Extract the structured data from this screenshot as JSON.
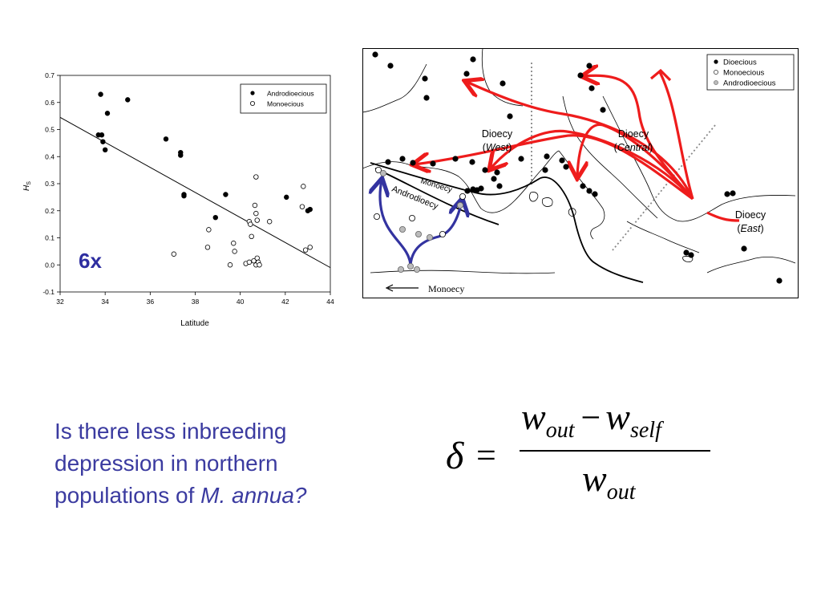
{
  "chart_data": {
    "type": "scatter",
    "xlabel": "Latitude",
    "ylabel_main": "H",
    "ylabel_sub": "S",
    "xlim": [
      32,
      44
    ],
    "ylim": [
      -0.1,
      0.7
    ],
    "x_ticks": [
      "32",
      "34",
      "36",
      "38",
      "40",
      "42",
      "44"
    ],
    "y_ticks": [
      "-0.1",
      "0.0",
      "0.1",
      "0.2",
      "0.3",
      "0.4",
      "0.5",
      "0.6",
      "0.7"
    ],
    "legend_position": "top-right",
    "annotation": "6x",
    "series": [
      {
        "name": "Androdioecious",
        "marker": "filled",
        "points": [
          [
            33.8,
            0.63
          ],
          [
            33.7,
            0.48
          ],
          [
            33.85,
            0.48
          ],
          [
            33.9,
            0.455
          ],
          [
            34.0,
            0.425
          ],
          [
            34.1,
            0.56
          ],
          [
            35.0,
            0.61
          ],
          [
            36.7,
            0.465
          ],
          [
            37.35,
            0.415
          ],
          [
            37.35,
            0.405
          ],
          [
            37.5,
            0.26
          ],
          [
            37.5,
            0.255
          ],
          [
            38.9,
            0.175
          ],
          [
            39.35,
            0.26
          ],
          [
            42.05,
            0.25
          ],
          [
            43.0,
            0.2
          ],
          [
            43.1,
            0.205
          ]
        ]
      },
      {
        "name": "Monoecious",
        "marker": "open",
        "points": [
          [
            37.05,
            0.04
          ],
          [
            38.55,
            0.065
          ],
          [
            38.6,
            0.13
          ],
          [
            39.55,
            0.0
          ],
          [
            39.7,
            0.08
          ],
          [
            39.75,
            0.05
          ],
          [
            40.25,
            0.005
          ],
          [
            40.4,
            0.01
          ],
          [
            40.4,
            0.16
          ],
          [
            40.45,
            0.15
          ],
          [
            40.5,
            0.105
          ],
          [
            40.6,
            0.015
          ],
          [
            40.65,
            0.22
          ],
          [
            40.7,
            0.19
          ],
          [
            40.7,
            0.0
          ],
          [
            40.75,
            0.025
          ],
          [
            40.8,
            0.01
          ],
          [
            40.85,
            0.0
          ],
          [
            40.7,
            0.325
          ],
          [
            40.75,
            0.165
          ],
          [
            41.3,
            0.16
          ],
          [
            42.75,
            0.215
          ],
          [
            42.8,
            0.29
          ],
          [
            42.9,
            0.055
          ],
          [
            43.1,
            0.065
          ]
        ]
      }
    ],
    "trendline": {
      "x": [
        32,
        44
      ],
      "y": [
        0.545,
        -0.01
      ]
    }
  },
  "map": {
    "legend": [
      "Dioecious",
      "Monoecious",
      "Androdioecious"
    ],
    "labels": {
      "west_title": "Dioecy",
      "west_sub": "West",
      "central_title": "Dioecy",
      "central_sub": "Central",
      "east_title": "Dioecy",
      "east_sub": "East",
      "monoecy_line": "Monoecy",
      "androdioecy_line": "Androdioecy",
      "monoecy_arrow": "Monoecy"
    }
  },
  "question": {
    "line1": "Is there less inbreeding",
    "line2": "depression in northern",
    "line3_prefix": "populations of ",
    "line3_species": "M. annua?"
  },
  "formula": {
    "lhs": "δ",
    "equals": "=",
    "w": "w",
    "sub_out": "out",
    "sub_self": "self",
    "minus": "−"
  },
  "colors": {
    "question_text": "#3b3ba0",
    "annotation_text": "#2e2ea0",
    "arrow_red": "#ee1c1c",
    "arrow_blue": "#3333a0"
  }
}
